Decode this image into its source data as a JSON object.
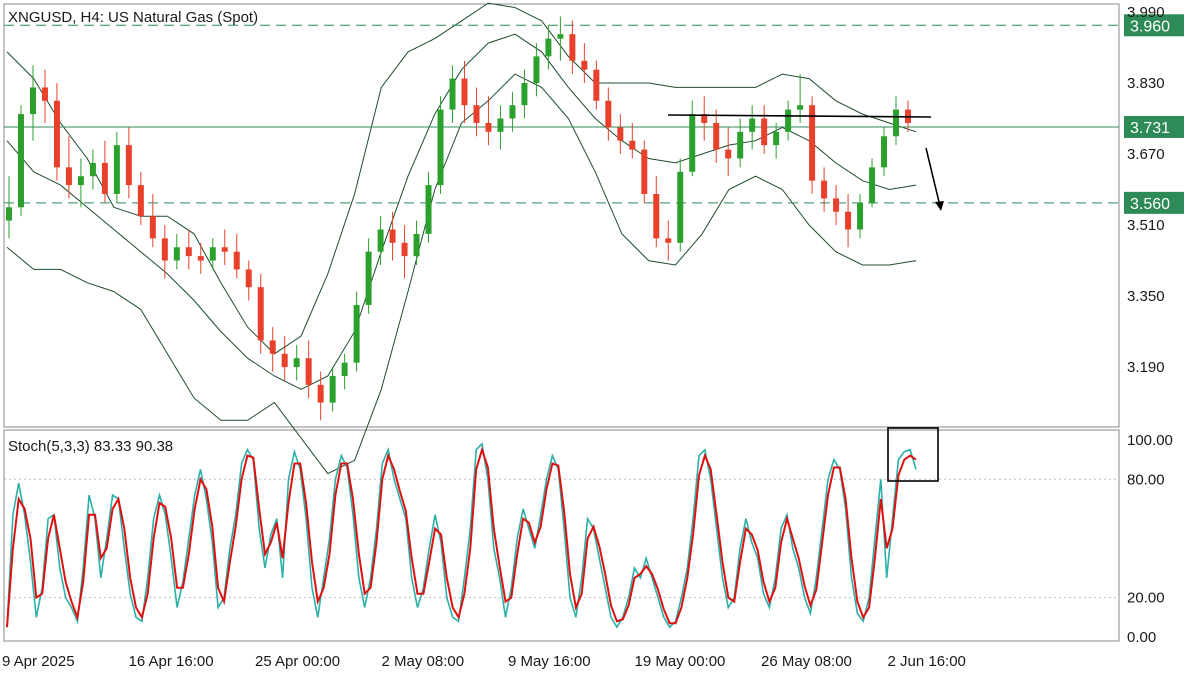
{
  "header": {
    "symbol": "XNGUSD",
    "timeframe": "H4:",
    "instrument": "US Natural Gas (Spot)"
  },
  "indicator": {
    "label": "Stoch(5,3,3)",
    "k_value": "83.33",
    "d_value": "90.38"
  },
  "colors": {
    "bull": "#2ca02c",
    "bear": "#e8402a",
    "band": "#1e4d2b",
    "level_line": "#2e8b57",
    "stoch_k": "#2bb0a8",
    "stoch_d": "#e01010",
    "annotation": "#000000"
  },
  "chart_data": [
    {
      "type": "candlestick",
      "title": "XNGUSD, H4:  US Natural Gas (Spot)",
      "y_ticks": [
        "3.990",
        "3.830",
        "3.670",
        "3.510",
        "3.350",
        "3.190"
      ],
      "ylim": [
        3.055,
        4.008
      ],
      "x_tick_labels": [
        "9 Apr 2025",
        "16 Apr 16:00",
        "25 Apr 00:00",
        "2 May 08:00",
        "9 May 16:00",
        "19 May 00:00",
        "26 May 08:00",
        "2 Jun 16:00"
      ],
      "price_levels": [
        {
          "value": 3.96,
          "label": "3.960",
          "style": "dashed"
        },
        {
          "value": 3.731,
          "label": "3.731",
          "style": "solid"
        },
        {
          "value": 3.56,
          "label": "3.560",
          "style": "dashed"
        }
      ],
      "bollinger_middle": [
        3.7,
        3.63,
        3.6,
        3.55,
        3.5,
        3.45,
        3.4,
        3.34,
        3.27,
        3.21,
        3.17,
        3.14,
        3.17,
        3.27,
        3.45,
        3.62,
        3.76,
        3.86,
        3.92,
        3.94,
        3.9,
        3.82,
        3.75,
        3.7,
        3.66,
        3.65,
        3.67,
        3.69,
        3.7,
        3.73,
        3.7,
        3.65,
        3.61,
        3.59,
        3.6
      ],
      "bollinger_upper": [
        3.9,
        3.84,
        3.74,
        3.66,
        3.55,
        3.53,
        3.53,
        3.49,
        3.38,
        3.28,
        3.22,
        3.26,
        3.4,
        3.58,
        3.82,
        3.9,
        3.93,
        3.97,
        4.01,
        4.0,
        3.97,
        3.89,
        3.83,
        3.83,
        3.83,
        3.82,
        3.82,
        3.82,
        3.82,
        3.85,
        3.84,
        3.79,
        3.76,
        3.74,
        3.72
      ],
      "bollinger_lower": [
        3.46,
        3.41,
        3.41,
        3.38,
        3.36,
        3.32,
        3.22,
        3.12,
        3.07,
        3.07,
        3.11,
        3.03,
        2.95,
        2.98,
        3.14,
        3.36,
        3.59,
        3.74,
        3.79,
        3.85,
        3.82,
        3.75,
        3.63,
        3.49,
        3.43,
        3.42,
        3.49,
        3.59,
        3.62,
        3.59,
        3.51,
        3.45,
        3.42,
        3.42,
        3.43
      ],
      "candles": [
        [
          3.52,
          3.62,
          3.48,
          3.55
        ],
        [
          3.55,
          3.78,
          3.53,
          3.76
        ],
        [
          3.76,
          3.87,
          3.7,
          3.82
        ],
        [
          3.82,
          3.86,
          3.74,
          3.79
        ],
        [
          3.79,
          3.83,
          3.61,
          3.64
        ],
        [
          3.64,
          3.71,
          3.57,
          3.6
        ],
        [
          3.6,
          3.66,
          3.55,
          3.62
        ],
        [
          3.62,
          3.68,
          3.59,
          3.65
        ],
        [
          3.65,
          3.7,
          3.56,
          3.58
        ],
        [
          3.58,
          3.72,
          3.56,
          3.69
        ],
        [
          3.69,
          3.73,
          3.57,
          3.6
        ],
        [
          3.6,
          3.63,
          3.51,
          3.53
        ],
        [
          3.53,
          3.58,
          3.46,
          3.48
        ],
        [
          3.48,
          3.51,
          3.39,
          3.43
        ],
        [
          3.43,
          3.49,
          3.41,
          3.46
        ],
        [
          3.46,
          3.5,
          3.41,
          3.44
        ],
        [
          3.44,
          3.47,
          3.4,
          3.43
        ],
        [
          3.43,
          3.48,
          3.41,
          3.46
        ],
        [
          3.46,
          3.5,
          3.42,
          3.45
        ],
        [
          3.45,
          3.49,
          3.39,
          3.41
        ],
        [
          3.41,
          3.43,
          3.34,
          3.37
        ],
        [
          3.37,
          3.4,
          3.22,
          3.25
        ],
        [
          3.25,
          3.28,
          3.18,
          3.22
        ],
        [
          3.22,
          3.26,
          3.16,
          3.19
        ],
        [
          3.19,
          3.24,
          3.16,
          3.21
        ],
        [
          3.21,
          3.25,
          3.12,
          3.15
        ],
        [
          3.15,
          3.18,
          3.07,
          3.11
        ],
        [
          3.11,
          3.19,
          3.09,
          3.17
        ],
        [
          3.17,
          3.22,
          3.14,
          3.2
        ],
        [
          3.2,
          3.36,
          3.18,
          3.33
        ],
        [
          3.33,
          3.48,
          3.31,
          3.45
        ],
        [
          3.45,
          3.53,
          3.42,
          3.5
        ],
        [
          3.5,
          3.54,
          3.43,
          3.47
        ],
        [
          3.47,
          3.51,
          3.39,
          3.44
        ],
        [
          3.44,
          3.52,
          3.42,
          3.49
        ],
        [
          3.49,
          3.63,
          3.47,
          3.6
        ],
        [
          3.6,
          3.8,
          3.58,
          3.77
        ],
        [
          3.77,
          3.87,
          3.74,
          3.84
        ],
        [
          3.84,
          3.88,
          3.74,
          3.78
        ],
        [
          3.78,
          3.82,
          3.71,
          3.74
        ],
        [
          3.74,
          3.8,
          3.69,
          3.72
        ],
        [
          3.72,
          3.78,
          3.68,
          3.75
        ],
        [
          3.75,
          3.81,
          3.72,
          3.78
        ],
        [
          3.78,
          3.86,
          3.75,
          3.83
        ],
        [
          3.83,
          3.92,
          3.8,
          3.89
        ],
        [
          3.89,
          3.96,
          3.86,
          3.93
        ],
        [
          3.93,
          3.98,
          3.88,
          3.94
        ],
        [
          3.94,
          3.97,
          3.85,
          3.88
        ],
        [
          3.88,
          3.92,
          3.83,
          3.86
        ],
        [
          3.86,
          3.88,
          3.77,
          3.79
        ],
        [
          3.79,
          3.82,
          3.7,
          3.73
        ],
        [
          3.73,
          3.76,
          3.67,
          3.7
        ],
        [
          3.7,
          3.74,
          3.66,
          3.68
        ],
        [
          3.68,
          3.7,
          3.56,
          3.58
        ],
        [
          3.58,
          3.62,
          3.46,
          3.48
        ],
        [
          3.48,
          3.52,
          3.43,
          3.47
        ],
        [
          3.47,
          3.66,
          3.45,
          3.63
        ],
        [
          3.63,
          3.79,
          3.62,
          3.76
        ],
        [
          3.76,
          3.8,
          3.7,
          3.74
        ],
        [
          3.74,
          3.77,
          3.65,
          3.68
        ],
        [
          3.68,
          3.73,
          3.62,
          3.66
        ],
        [
          3.66,
          3.75,
          3.64,
          3.72
        ],
        [
          3.72,
          3.78,
          3.68,
          3.75
        ],
        [
          3.75,
          3.78,
          3.67,
          3.69
        ],
        [
          3.69,
          3.74,
          3.66,
          3.72
        ],
        [
          3.72,
          3.79,
          3.7,
          3.77
        ],
        [
          3.77,
          3.85,
          3.74,
          3.78
        ],
        [
          3.78,
          3.8,
          3.58,
          3.61
        ],
        [
          3.61,
          3.64,
          3.54,
          3.57
        ],
        [
          3.57,
          3.6,
          3.51,
          3.54
        ],
        [
          3.54,
          3.58,
          3.46,
          3.5
        ],
        [
          3.5,
          3.58,
          3.48,
          3.56
        ],
        [
          3.56,
          3.66,
          3.55,
          3.64
        ],
        [
          3.64,
          3.73,
          3.62,
          3.71
        ],
        [
          3.71,
          3.8,
          3.69,
          3.77
        ],
        [
          3.77,
          3.79,
          3.72,
          3.74
        ]
      ]
    },
    {
      "type": "line",
      "title": "Stoch(5,3,3) 83.33 90.38",
      "y_ticks": [
        "100.00",
        "80.00",
        "20.00",
        "0.00"
      ],
      "ylim": [
        -2,
        105
      ],
      "dotted_levels": [
        80,
        20
      ],
      "series": [
        {
          "key": "k",
          "values": [
            5,
            62,
            78,
            62,
            38,
            10,
            25,
            60,
            62,
            35,
            20,
            15,
            8,
            35,
            72,
            60,
            30,
            50,
            72,
            70,
            45,
            22,
            10,
            8,
            30,
            60,
            72,
            62,
            40,
            15,
            28,
            50,
            72,
            85,
            70,
            48,
            15,
            20,
            45,
            62,
            88,
            95,
            90,
            55,
            35,
            52,
            60,
            30,
            80,
            94,
            85,
            60,
            25,
            10,
            30,
            50,
            80,
            92,
            86,
            62,
            30,
            15,
            30,
            55,
            88,
            95,
            80,
            70,
            60,
            30,
            15,
            25,
            45,
            62,
            48,
            20,
            10,
            8,
            30,
            55,
            95,
            98,
            80,
            45,
            30,
            10,
            25,
            50,
            65,
            55,
            45,
            62,
            80,
            92,
            85,
            55,
            20,
            10,
            30,
            60,
            55,
            40,
            25,
            10,
            5,
            10,
            20,
            35,
            30,
            40,
            30,
            20,
            10,
            5,
            8,
            20,
            35,
            60,
            92,
            95,
            80,
            55,
            30,
            15,
            20,
            45,
            60,
            48,
            40,
            22,
            15,
            30,
            55,
            62,
            45,
            35,
            20,
            12,
            30,
            55,
            80,
            90,
            85,
            65,
            30,
            12,
            8,
            20,
            50,
            80,
            30,
            60,
            90,
            94,
            95,
            85
          ]
        },
        {
          "key": "d",
          "values": [
            5,
            45,
            70,
            65,
            50,
            20,
            22,
            50,
            62,
            45,
            28,
            18,
            10,
            28,
            62,
            62,
            40,
            45,
            65,
            70,
            55,
            30,
            15,
            10,
            22,
            50,
            68,
            66,
            50,
            25,
            25,
            42,
            65,
            80,
            75,
            56,
            25,
            18,
            38,
            56,
            80,
            92,
            91,
            65,
            42,
            48,
            58,
            40,
            68,
            88,
            88,
            68,
            38,
            18,
            25,
            42,
            72,
            88,
            88,
            70,
            42,
            22,
            25,
            48,
            80,
            92,
            85,
            74,
            64,
            40,
            22,
            22,
            38,
            55,
            52,
            30,
            15,
            10,
            22,
            45,
            85,
            95,
            86,
            55,
            36,
            18,
            20,
            42,
            60,
            58,
            48,
            56,
            75,
            88,
            87,
            64,
            32,
            15,
            22,
            50,
            56,
            46,
            32,
            16,
            8,
            9,
            16,
            30,
            32,
            36,
            32,
            24,
            14,
            7,
            7,
            15,
            30,
            52,
            82,
            92,
            85,
            62,
            38,
            20,
            18,
            38,
            55,
            52,
            44,
            28,
            18,
            25,
            48,
            60,
            50,
            40,
            26,
            16,
            24,
            48,
            72,
            86,
            86,
            70,
            40,
            18,
            10,
            15,
            40,
            70,
            45,
            55,
            82,
            90,
            92,
            90
          ]
        }
      ]
    }
  ]
}
